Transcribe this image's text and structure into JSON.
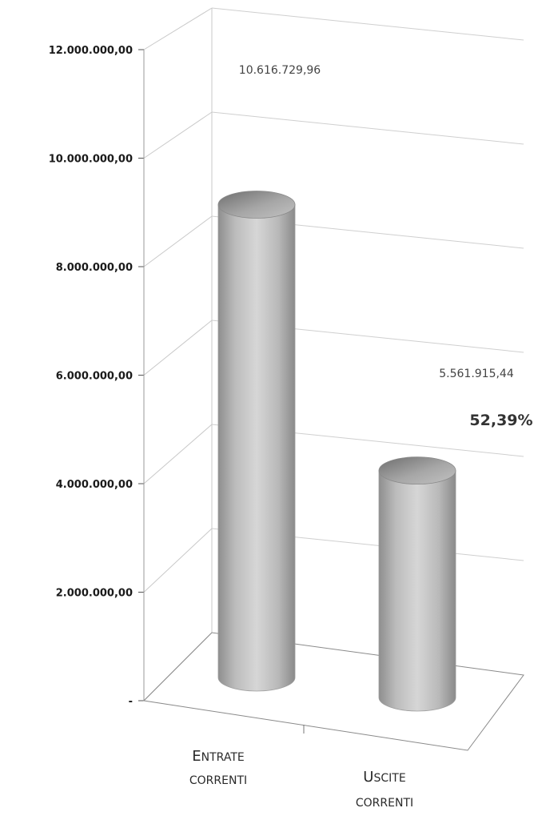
{
  "chart_data": {
    "type": "bar",
    "style": "3d-cylinder",
    "categories": [
      "Entrate correnti",
      "Uscite correnti"
    ],
    "category_labels": [
      {
        "big": "E",
        "small": "NTRATE",
        "line2": "CORRENTI"
      },
      {
        "big": "U",
        "small": "SCITE",
        "line2": "CORRENTI"
      }
    ],
    "values": [
      10616729.96,
      5561915.44
    ],
    "data_labels": [
      "10.616.729,96",
      "5.561.915,44"
    ],
    "annotations": [
      {
        "category": "Uscite correnti",
        "text": "52,39%"
      }
    ],
    "ylim": [
      0,
      12000000
    ],
    "yticks": [
      0,
      2000000,
      4000000,
      6000000,
      8000000,
      10000000,
      12000000
    ],
    "ytick_labels": [
      "-",
      "2.000.000,00",
      "4.000.000,00",
      "6.000.000,00",
      "8.000.000,00",
      "10.000.000,00",
      "12.000.000,00"
    ],
    "grid": true,
    "legend": false,
    "title": "",
    "xlabel": "",
    "ylabel": ""
  }
}
